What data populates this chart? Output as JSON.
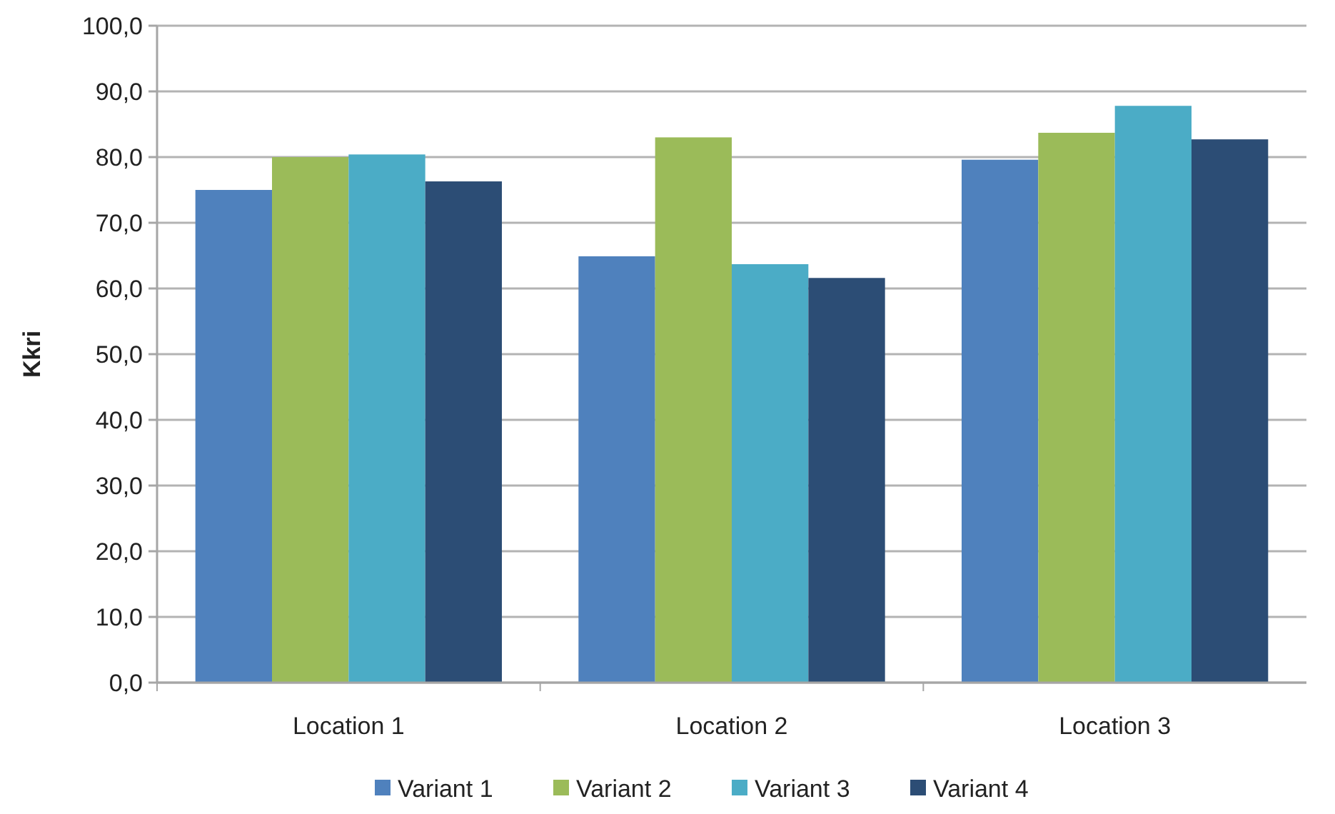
{
  "chart_data": {
    "type": "bar",
    "ylabel": "Kkri",
    "categories": [
      "Location 1",
      "Location 2",
      "Location 3"
    ],
    "series": [
      {
        "name": "Variant 1",
        "color": "#4f81bd",
        "values": [
          75.0,
          64.9,
          79.6
        ]
      },
      {
        "name": "Variant 2",
        "color": "#9bbb59",
        "values": [
          80.0,
          83.0,
          83.7
        ]
      },
      {
        "name": "Variant 3",
        "color": "#4bacc6",
        "values": [
          80.4,
          63.7,
          87.8
        ]
      },
      {
        "name": "Variant 4",
        "color": "#2c4d75",
        "values": [
          76.3,
          61.6,
          82.7
        ]
      }
    ],
    "ylim": [
      0,
      100
    ],
    "yticks": [
      {
        "value": 0,
        "label": "0,0"
      },
      {
        "value": 10,
        "label": "10,0"
      },
      {
        "value": 20,
        "label": "20,0"
      },
      {
        "value": 30,
        "label": "30,0"
      },
      {
        "value": 40,
        "label": "40,0"
      },
      {
        "value": 50,
        "label": "50,0"
      },
      {
        "value": 60,
        "label": "60,0"
      },
      {
        "value": 70,
        "label": "70,0"
      },
      {
        "value": 80,
        "label": "80,0"
      },
      {
        "value": 90,
        "label": "90,0"
      },
      {
        "value": 100,
        "label": "100,0"
      }
    ],
    "grid": "y",
    "legend": "bottom"
  }
}
